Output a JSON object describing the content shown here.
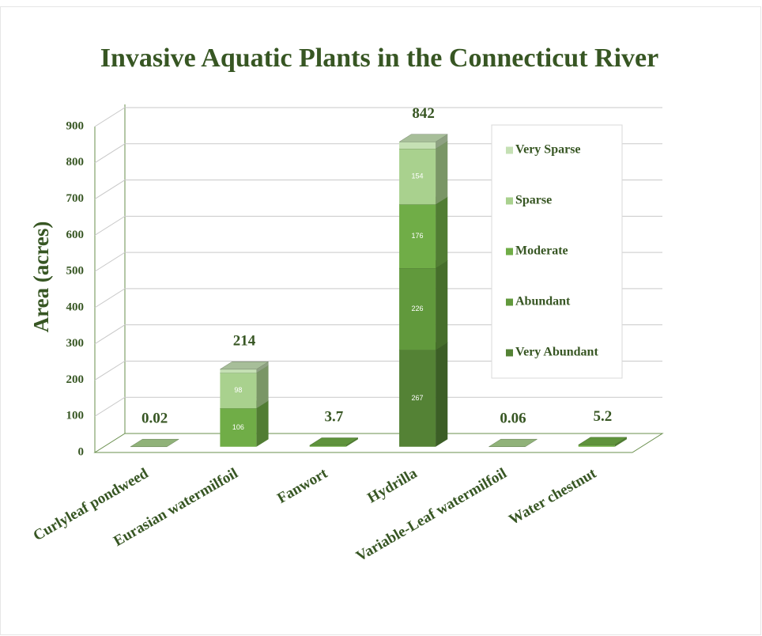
{
  "chart_data": {
    "type": "bar3d_stacked",
    "title": "Invasive Aquatic Plants in the Connecticut River",
    "y_label": "Area (acres)",
    "categories": [
      "Curlyleaf pondweed",
      "Eurasian watermilfoil",
      "Fanwort",
      "Hydrilla",
      "Variable-Leaf watermilfoil",
      "Water chestnut"
    ],
    "series": [
      {
        "name": "Very Abundant",
        "color": "#548235",
        "values": [
          null,
          null,
          null,
          267,
          null,
          null
        ]
      },
      {
        "name": "Abundant",
        "color": "#61993c",
        "values": [
          null,
          null,
          null,
          226,
          null,
          null
        ]
      },
      {
        "name": "Moderate",
        "color": "#70ad47",
        "values": [
          null,
          106,
          3.7,
          176,
          null,
          5.2
        ]
      },
      {
        "name": "Sparse",
        "color": "#a9d18e",
        "values": [
          0.02,
          98,
          null,
          154,
          0.06,
          null
        ]
      },
      {
        "name": "Very Sparse",
        "color": "#c5e0b4",
        "values": [
          null,
          10,
          null,
          19,
          null,
          null
        ]
      }
    ],
    "totals": [
      0.02,
      214,
      3.7,
      842,
      0.06,
      5.2
    ],
    "ylim": [
      0,
      900
    ],
    "yticks": [
      0,
      100,
      200,
      300,
      400,
      500,
      600,
      700,
      800,
      900
    ],
    "grid": true,
    "legend": "right"
  }
}
